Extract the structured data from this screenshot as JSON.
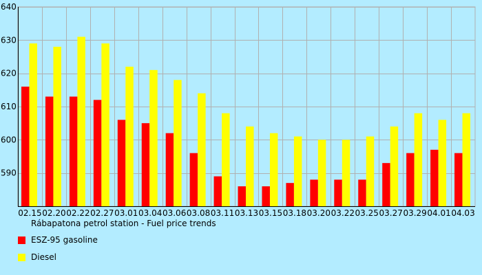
{
  "chart_data": {
    "type": "bar",
    "title": "Rábapatona petrol station - Fuel price trends",
    "categories": [
      "02.15",
      "02.20",
      "02.22",
      "02.27",
      "03.01",
      "03.04",
      "03.06",
      "03.08",
      "03.11",
      "03.13",
      "03.15",
      "03.18",
      "03.20",
      "03.22",
      "03.25",
      "03.27",
      "03.29",
      "04.01",
      "04.03"
    ],
    "series": [
      {
        "name": "ESZ-95 gasoline",
        "color": "#ff0000",
        "values": [
          616,
          613,
          613,
          612,
          606,
          605,
          602,
          596,
          589,
          586,
          586,
          587,
          588,
          588,
          588,
          593,
          596,
          597,
          596
        ]
      },
      {
        "name": "Diesel",
        "color": "#ffff00",
        "values": [
          629,
          628,
          631,
          629,
          622,
          621,
          618,
          614,
          608,
          604,
          602,
          601,
          600,
          600,
          601,
          604,
          608,
          606,
          608
        ]
      }
    ],
    "ylim": [
      580,
      640
    ],
    "yticks": [
      590,
      600,
      610,
      620,
      630,
      640
    ],
    "legend_position": "bottom-left",
    "grid": true
  }
}
